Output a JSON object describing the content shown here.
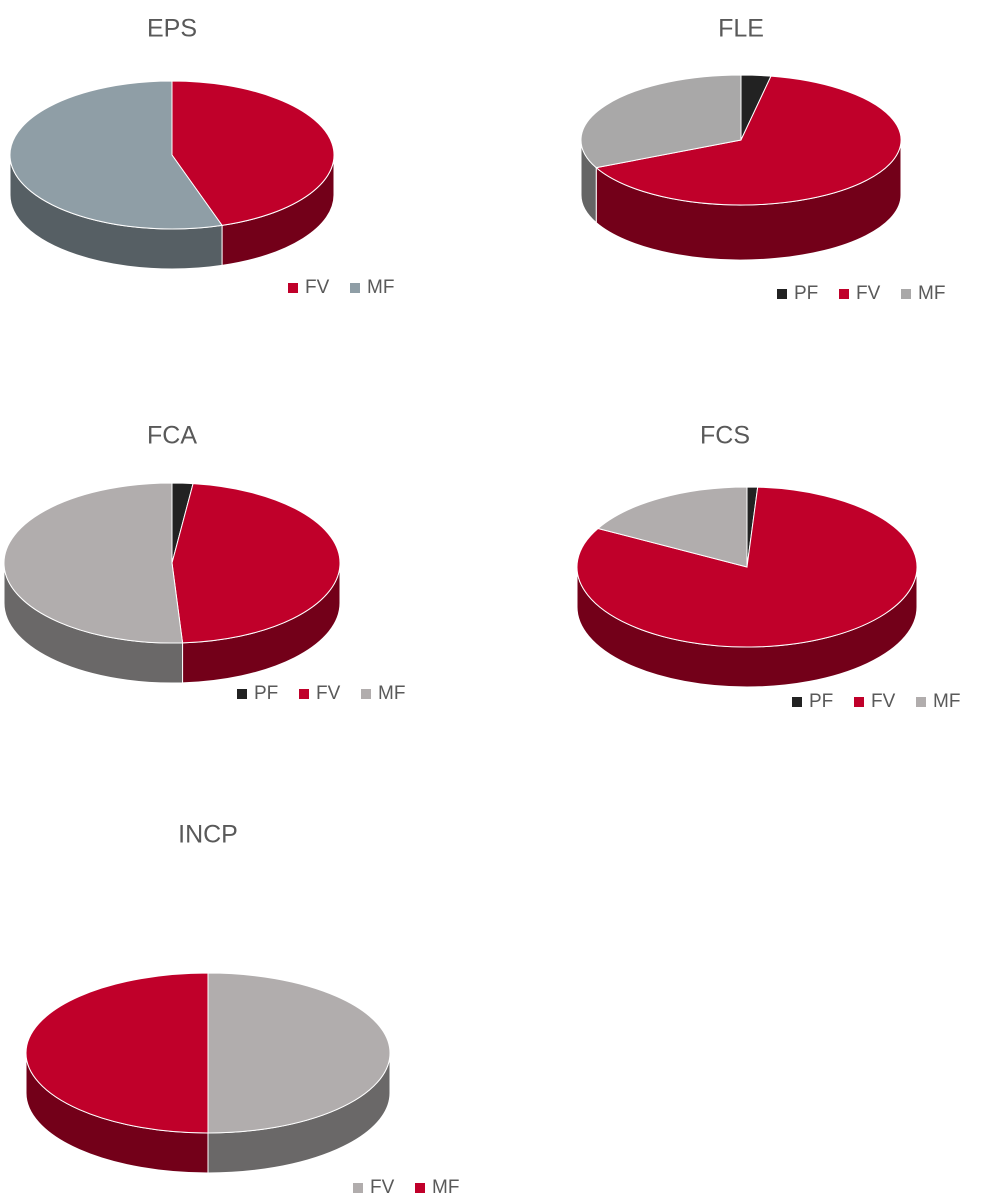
{
  "chart_data": [
    {
      "type": "pie",
      "title": "EPS",
      "categories": [
        "FV",
        "MF"
      ],
      "values": [
        45,
        55
      ],
      "colors": [
        "#c0002a",
        "#8f9ea6"
      ]
    },
    {
      "type": "pie",
      "title": "FLE",
      "categories": [
        "PF",
        "FV",
        "MF"
      ],
      "values": [
        3,
        65,
        32
      ],
      "colors": [
        "#222222",
        "#c0002a",
        "#a9a8a8"
      ]
    },
    {
      "type": "pie",
      "title": "FCA",
      "categories": [
        "PF",
        "FV",
        "MF"
      ],
      "values": [
        2,
        47,
        51
      ],
      "colors": [
        "#222222",
        "#c0002a",
        "#b1adad"
      ]
    },
    {
      "type": "pie",
      "title": "FCS",
      "categories": [
        "PF",
        "FV",
        "MF"
      ],
      "values": [
        1,
        82,
        17
      ],
      "colors": [
        "#222222",
        "#c0002a",
        "#b1adad"
      ]
    },
    {
      "type": "pie",
      "title": "INCP",
      "categories": [
        "FV",
        "MF"
      ],
      "values": [
        50,
        50
      ],
      "colors": [
        "#b1adad",
        "#c0002a"
      ]
    }
  ]
}
